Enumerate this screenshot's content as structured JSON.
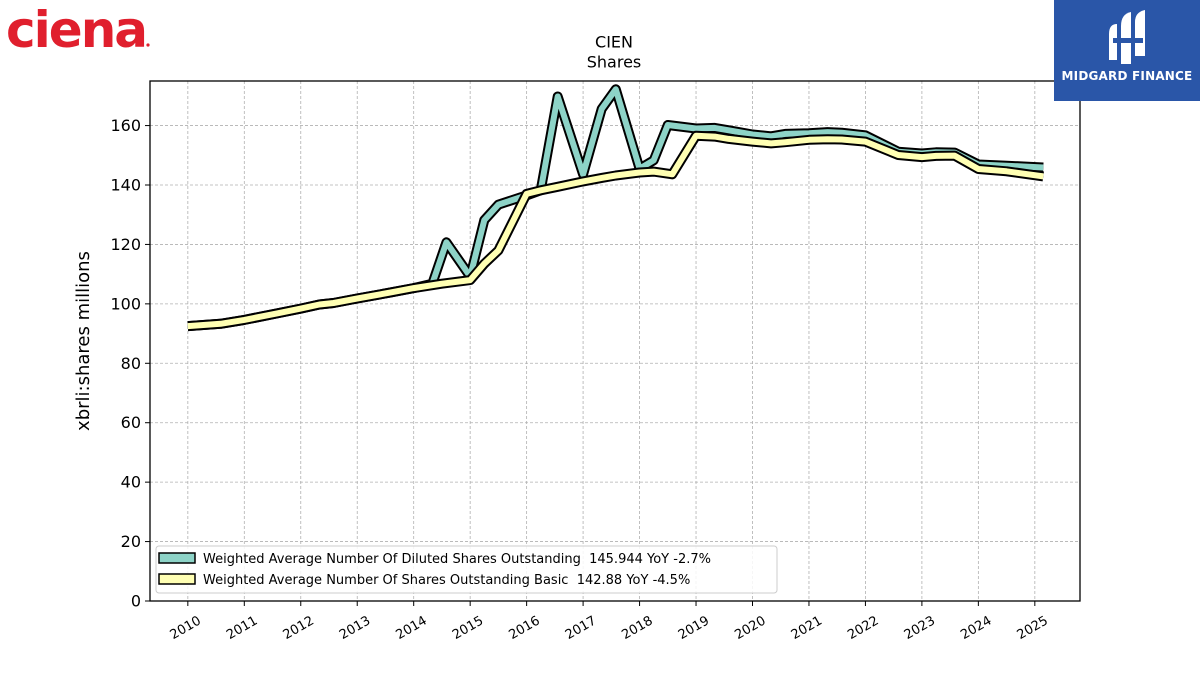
{
  "chart_data": {
    "type": "line",
    "title": "CIEN",
    "subtitle": "Shares",
    "ylabel": "xbrli:shares millions",
    "xlabel": "",
    "ylim": [
      0,
      175
    ],
    "xlim": [
      2009.33,
      2025.8
    ],
    "yticks": [
      0,
      20,
      40,
      60,
      80,
      100,
      120,
      140,
      160
    ],
    "xticks": [
      "2010",
      "2011",
      "2012",
      "2013",
      "2014",
      "2015",
      "2016",
      "2017",
      "2018",
      "2019",
      "2020",
      "2021",
      "2022",
      "2023",
      "2024",
      "2025"
    ],
    "grid": true,
    "legend_position": "lower-left",
    "series": [
      {
        "name": "Weighted Average Number Of Diluted Shares Outstanding",
        "legend_label": "Weighted Average Number Of Diluted Shares Outstanding  145.944 YoY -2.7%",
        "color": "#8dd3c7",
        "points": [
          [
            2010.0,
            92.5
          ],
          [
            2010.58,
            93.3
          ],
          [
            2011.0,
            94.6
          ],
          [
            2011.58,
            96.8
          ],
          [
            2012.0,
            98.4
          ],
          [
            2012.33,
            99.8
          ],
          [
            2012.58,
            100.3
          ],
          [
            2013.0,
            101.8
          ],
          [
            2013.58,
            103.8
          ],
          [
            2014.0,
            105.3
          ],
          [
            2014.33,
            106.8
          ],
          [
            2014.58,
            120.7
          ],
          [
            2015.0,
            109.2
          ],
          [
            2015.25,
            128.2
          ],
          [
            2015.5,
            133.4
          ],
          [
            2016.0,
            136.5
          ],
          [
            2016.25,
            138.2
          ],
          [
            2016.55,
            169.8
          ],
          [
            2017.0,
            143.6
          ],
          [
            2017.33,
            165.6
          ],
          [
            2017.58,
            172.2
          ],
          [
            2018.0,
            145.5
          ],
          [
            2018.25,
            148.3
          ],
          [
            2018.5,
            160.2
          ],
          [
            2019.0,
            159.0
          ],
          [
            2019.33,
            159.2
          ],
          [
            2019.58,
            158.4
          ],
          [
            2020.0,
            157.0
          ],
          [
            2020.33,
            156.4
          ],
          [
            2020.58,
            157.2
          ],
          [
            2021.0,
            157.4
          ],
          [
            2021.33,
            157.8
          ],
          [
            2021.58,
            157.6
          ],
          [
            2022.0,
            156.7
          ],
          [
            2022.58,
            151.2
          ],
          [
            2023.0,
            150.6
          ],
          [
            2023.25,
            151.0
          ],
          [
            2023.58,
            150.9
          ],
          [
            2024.0,
            146.9
          ],
          [
            2024.5,
            146.5
          ],
          [
            2025.15,
            145.9
          ]
        ]
      },
      {
        "name": "Weighted Average Number Of Shares Outstanding Basic",
        "legend_label": "Weighted Average Number Of Shares Outstanding Basic  142.88 YoY -4.5%",
        "color": "#ffffb3",
        "points": [
          [
            2010.0,
            92.5
          ],
          [
            2010.58,
            93.3
          ],
          [
            2011.0,
            94.6
          ],
          [
            2011.58,
            96.8
          ],
          [
            2012.0,
            98.4
          ],
          [
            2012.33,
            99.8
          ],
          [
            2012.58,
            100.3
          ],
          [
            2013.0,
            101.8
          ],
          [
            2013.58,
            103.8
          ],
          [
            2014.0,
            105.3
          ],
          [
            2014.5,
            106.8
          ],
          [
            2015.0,
            108.0
          ],
          [
            2015.25,
            113.5
          ],
          [
            2015.5,
            118.0
          ],
          [
            2016.0,
            137.0
          ],
          [
            2016.25,
            138.2
          ],
          [
            2016.55,
            139.4
          ],
          [
            2017.0,
            141.2
          ],
          [
            2017.33,
            142.4
          ],
          [
            2017.58,
            143.2
          ],
          [
            2018.0,
            144.2
          ],
          [
            2018.25,
            144.5
          ],
          [
            2018.58,
            143.6
          ],
          [
            2019.0,
            156.6
          ],
          [
            2019.33,
            156.3
          ],
          [
            2019.58,
            155.5
          ],
          [
            2020.0,
            154.6
          ],
          [
            2020.33,
            154.0
          ],
          [
            2020.58,
            154.4
          ],
          [
            2021.0,
            155.2
          ],
          [
            2021.33,
            155.4
          ],
          [
            2021.58,
            155.3
          ],
          [
            2022.0,
            154.6
          ],
          [
            2022.58,
            150.1
          ],
          [
            2023.0,
            149.4
          ],
          [
            2023.25,
            149.8
          ],
          [
            2023.58,
            149.9
          ],
          [
            2024.0,
            145.4
          ],
          [
            2024.5,
            144.6
          ],
          [
            2025.15,
            142.9
          ]
        ]
      }
    ]
  },
  "branding": {
    "left_logo_text": "ciena",
    "left_logo_color": "#e01f2d",
    "right_logo_name": "MIDGARD FINANCE",
    "right_logo_bg": "#2a56a8"
  }
}
